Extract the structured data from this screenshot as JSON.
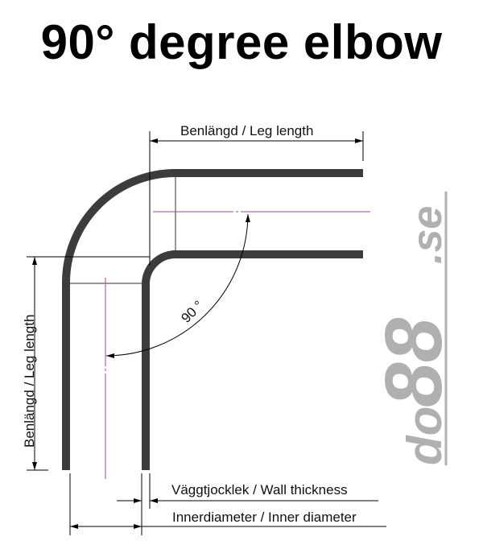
{
  "title": "90° degree elbow",
  "labels": {
    "leg_length_top": "Benlängd / Leg length",
    "leg_length_left": "Benlängd / Leg length",
    "angle": "90 °",
    "wall_thickness": "Väggtjocklek / Wall thickness",
    "inner_diameter": "Innerdiameter / Inner diameter"
  },
  "logo": {
    "text_main": "do",
    "text_num": "88",
    "text_suffix": ".se"
  },
  "colors": {
    "pipe": "#3c3c3c",
    "centerline": "#a040a0",
    "logo": "#b0b0b0"
  }
}
